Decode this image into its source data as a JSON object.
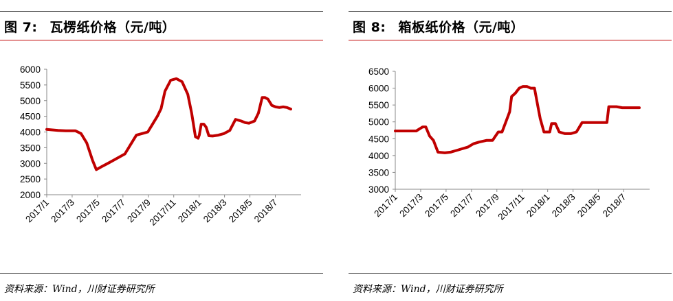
{
  "figures": [
    {
      "label": "图 7:",
      "title": "瓦楞纸价格（元/吨）",
      "source": "资料来源：Wind，川财证券研究所"
    },
    {
      "label": "图 8:",
      "title": "箱板纸价格（元/吨）",
      "source": "资料来源：Wind，川财证券研究所"
    }
  ],
  "chart_data": [
    {
      "type": "line",
      "title": "瓦楞纸价格（元/吨）",
      "xlabel": "",
      "ylabel": "",
      "ylim": [
        2000,
        6000
      ],
      "yticks": [
        2000,
        2500,
        3000,
        3500,
        4000,
        4500,
        5000,
        5500,
        6000
      ],
      "xlim": [
        0,
        6.67
      ],
      "xtick_labels": [
        "2017/1",
        "2017/3",
        "2017/5",
        "2017/7",
        "2017/9",
        "2017/11",
        "2018/1",
        "2018/3",
        "2018/5",
        "2018/7"
      ],
      "grid": false,
      "color": "#c00000",
      "series": [
        {
          "x": [
            0,
            0.3,
            0.5,
            0.75,
            0.9,
            1.05,
            1.2,
            1.3,
            1.45,
            1.6,
            1.75,
            1.9,
            2.05,
            2.2,
            2.35,
            2.5,
            2.65,
            2.8,
            2.9,
            3.0,
            3.1,
            3.25,
            3.4,
            3.55,
            3.7,
            3.8,
            3.9,
            3.97,
            4.0,
            4.05,
            4.12,
            4.18,
            4.25,
            4.35,
            4.5,
            4.65,
            4.8,
            4.95,
            5.1,
            5.2,
            5.3,
            5.45,
            5.55,
            5.65,
            5.72,
            5.8,
            5.9,
            6.0,
            6.1,
            6.2,
            6.3,
            6.4
          ],
          "values": [
            4080,
            4050,
            4040,
            4040,
            3950,
            3650,
            3100,
            2800,
            2900,
            3000,
            3100,
            3200,
            3300,
            3600,
            3900,
            3950,
            4000,
            4300,
            4500,
            4750,
            5300,
            5650,
            5700,
            5600,
            5200,
            4600,
            3850,
            3800,
            3900,
            4250,
            4250,
            4150,
            3880,
            3870,
            3900,
            3950,
            4050,
            4400,
            4350,
            4300,
            4280,
            4350,
            4600,
            5100,
            5100,
            5050,
            4850,
            4800,
            4780,
            4800,
            4780,
            4730
          ]
        }
      ]
    },
    {
      "type": "line",
      "title": "箱板纸价格（元/吨）",
      "xlabel": "",
      "ylabel": "",
      "ylim": [
        3000,
        6500
      ],
      "yticks": [
        3000,
        3500,
        4000,
        4500,
        5000,
        5500,
        6000,
        6500
      ],
      "xlim": [
        0,
        6.67
      ],
      "xtick_labels": [
        "2017/1",
        "2017/3",
        "2017/5",
        "2017/7",
        "2017/9",
        "2017/11",
        "2018/1",
        "2018/3",
        "2018/5",
        "2018/7"
      ],
      "grid": false,
      "color": "#c00000",
      "series": [
        {
          "x": [
            0,
            0.3,
            0.55,
            0.72,
            0.8,
            0.9,
            1.0,
            1.12,
            1.3,
            1.45,
            1.6,
            1.75,
            1.9,
            2.05,
            2.2,
            2.4,
            2.55,
            2.7,
            2.8,
            2.9,
            3.0,
            3.05,
            3.15,
            3.25,
            3.35,
            3.45,
            3.55,
            3.65,
            3.75,
            3.8,
            3.9,
            3.95,
            4.05,
            4.1,
            4.2,
            4.3,
            4.45,
            4.6,
            4.75,
            4.9,
            5.0,
            5.15,
            5.3,
            5.45,
            5.55,
            5.6,
            5.7,
            5.8,
            5.95,
            6.1,
            6.4
          ],
          "values": [
            4730,
            4730,
            4730,
            4850,
            4850,
            4580,
            4450,
            4100,
            4080,
            4100,
            4150,
            4200,
            4250,
            4350,
            4400,
            4450,
            4450,
            4700,
            4700,
            5000,
            5300,
            5750,
            5850,
            6000,
            6050,
            6050,
            6000,
            6000,
            5400,
            5100,
            4700,
            4700,
            4700,
            4950,
            4950,
            4700,
            4650,
            4650,
            4700,
            4980,
            4980,
            4980,
            4980,
            4980,
            4980,
            5450,
            5450,
            5450,
            5420,
            5420,
            5420
          ]
        }
      ]
    }
  ]
}
